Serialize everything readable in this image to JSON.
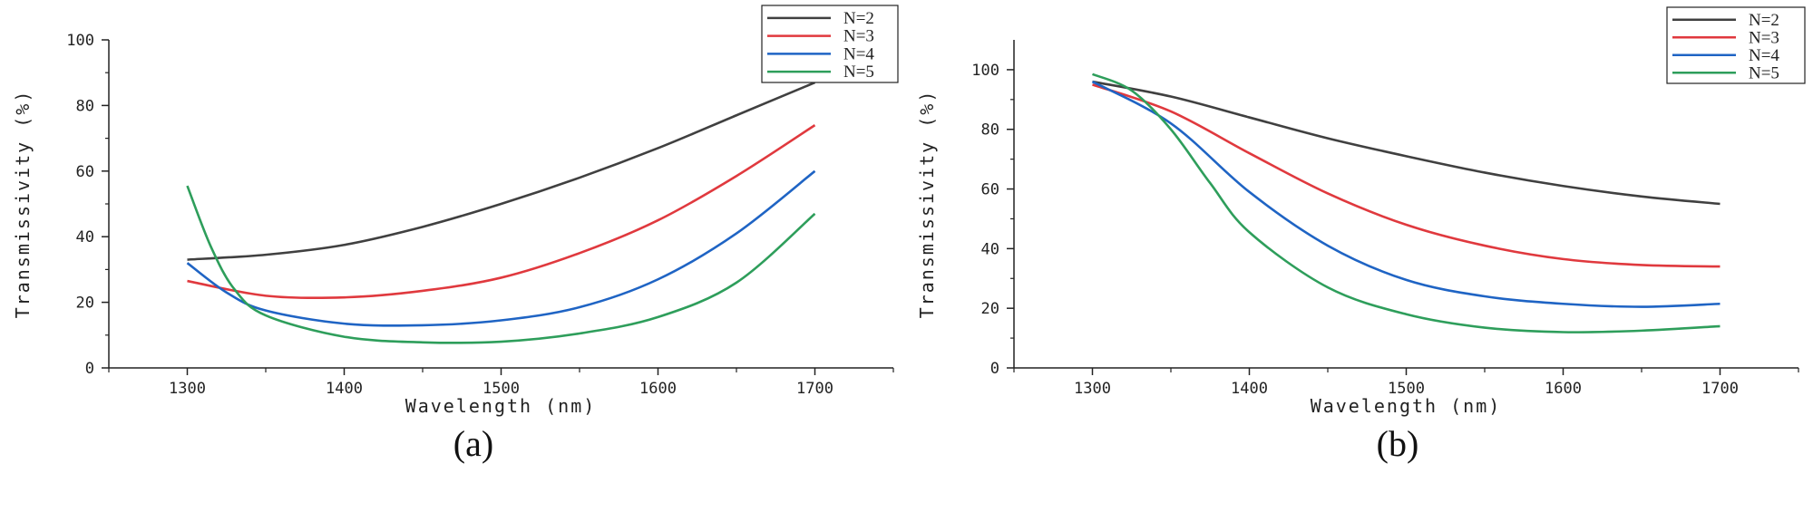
{
  "colors": {
    "N=2": "#404040",
    "N=3": "#e0393e",
    "N=4": "#1f64c4",
    "N=5": "#2e9e5b"
  },
  "chart_data": [
    {
      "type": "line",
      "panel_label": "(a)",
      "xlabel": "Wavelength (nm)",
      "ylabel": "Transmissivity (%)",
      "xlim": [
        1250,
        1750
      ],
      "ylim": [
        0,
        100
      ],
      "xticks": [
        1300,
        1400,
        1500,
        1600,
        1700
      ],
      "yticks": [
        0,
        20,
        40,
        60,
        80,
        100
      ],
      "legend": "top-right",
      "series": [
        {
          "name": "N=2",
          "x": [
            1300,
            1350,
            1400,
            1450,
            1500,
            1550,
            1600,
            1650,
            1700
          ],
          "y": [
            33,
            34.5,
            37.5,
            43,
            50,
            58,
            67,
            77,
            87
          ]
        },
        {
          "name": "N=3",
          "x": [
            1300,
            1350,
            1400,
            1450,
            1500,
            1550,
            1600,
            1650,
            1700
          ],
          "y": [
            26.5,
            22,
            21.5,
            23.5,
            27.5,
            35,
            45,
            58.5,
            74
          ]
        },
        {
          "name": "N=4",
          "x": [
            1300,
            1325,
            1350,
            1400,
            1450,
            1500,
            1550,
            1600,
            1650,
            1700
          ],
          "y": [
            32,
            23,
            17.5,
            13.5,
            13,
            14.5,
            18.5,
            27,
            41,
            60
          ]
        },
        {
          "name": "N=5",
          "x": [
            1300,
            1315,
            1330,
            1350,
            1400,
            1450,
            1500,
            1550,
            1600,
            1650,
            1700
          ],
          "y": [
            55.5,
            37,
            24,
            16,
            9.5,
            7.8,
            8,
            10.5,
            15.5,
            26,
            47
          ]
        }
      ]
    },
    {
      "type": "line",
      "panel_label": "(b)",
      "xlabel": "Wavelength (nm)",
      "ylabel": "Transmissivity (%)",
      "xlim": [
        1250,
        1750
      ],
      "ylim": [
        0,
        110
      ],
      "xticks": [
        1300,
        1400,
        1500,
        1600,
        1700
      ],
      "yticks": [
        0,
        20,
        40,
        60,
        80,
        100
      ],
      "legend": "top-right",
      "series": [
        {
          "name": "N=2",
          "x": [
            1300,
            1350,
            1400,
            1450,
            1500,
            1550,
            1600,
            1650,
            1700
          ],
          "y": [
            96,
            91,
            84,
            77,
            71,
            65.5,
            61,
            57.5,
            55
          ]
        },
        {
          "name": "N=3",
          "x": [
            1300,
            1350,
            1400,
            1450,
            1500,
            1550,
            1600,
            1650,
            1700
          ],
          "y": [
            95,
            86,
            72,
            58.5,
            48,
            41,
            36.5,
            34.5,
            34
          ]
        },
        {
          "name": "N=4",
          "x": [
            1300,
            1350,
            1400,
            1450,
            1500,
            1550,
            1600,
            1650,
            1700
          ],
          "y": [
            96,
            82,
            59,
            41,
            29.5,
            24,
            21.5,
            20.5,
            21.5
          ]
        },
        {
          "name": "N=5",
          "x": [
            1300,
            1325,
            1350,
            1375,
            1400,
            1450,
            1500,
            1550,
            1600,
            1650,
            1700
          ],
          "y": [
            98.5,
            93,
            80,
            62,
            45.5,
            27,
            18,
            13.5,
            12,
            12.5,
            14
          ]
        }
      ]
    }
  ]
}
